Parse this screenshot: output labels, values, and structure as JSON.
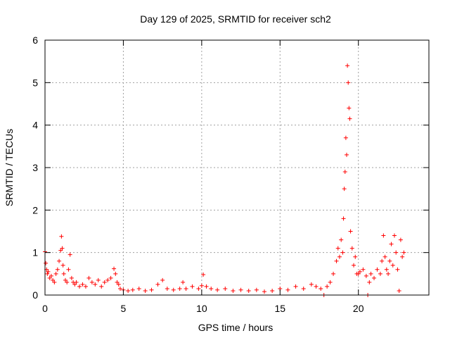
{
  "chart_data": {
    "type": "scatter",
    "title": "Day 129 of 2025, SRMTID for receiver sch2",
    "xlabel": "GPS time / hours",
    "ylabel": "SRMTID / TECUs",
    "xlim": [
      0,
      24.5
    ],
    "ylim": [
      0,
      6
    ],
    "xticks": [
      0,
      5,
      10,
      15,
      20
    ],
    "yticks": [
      0,
      1,
      2,
      3,
      4,
      5,
      6
    ],
    "xtick_labels": [
      "0",
      "5",
      "10",
      "15",
      "20"
    ],
    "ytick_labels": [
      "0",
      "1",
      "2",
      "3",
      "4",
      "5",
      "6"
    ],
    "grid": true,
    "marker": "+",
    "series": [
      {
        "name": "SRMTID",
        "color": "#ff0000",
        "x": [
          0.0,
          0.05,
          0.1,
          0.15,
          0.2,
          0.3,
          0.4,
          0.5,
          0.6,
          0.7,
          0.8,
          0.9,
          1.0,
          1.05,
          1.1,
          1.15,
          1.2,
          1.3,
          1.4,
          1.5,
          1.6,
          1.7,
          1.8,
          1.9,
          2.0,
          2.2,
          2.4,
          2.6,
          2.8,
          3.0,
          3.2,
          3.4,
          3.6,
          3.8,
          4.0,
          4.2,
          4.4,
          4.5,
          4.6,
          4.7,
          4.8,
          5.0,
          5.3,
          5.6,
          6.0,
          6.4,
          6.8,
          7.2,
          7.5,
          7.8,
          8.2,
          8.6,
          8.8,
          9.0,
          9.4,
          9.8,
          10.0,
          10.1,
          10.3,
          10.6,
          11.0,
          11.5,
          12.0,
          12.5,
          13.0,
          13.5,
          14.0,
          14.5,
          15.0,
          15.5,
          16.0,
          16.5,
          17.0,
          17.3,
          17.6,
          17.8,
          18.0,
          18.2,
          18.4,
          18.6,
          18.7,
          18.8,
          18.9,
          19.0,
          19.05,
          19.1,
          19.15,
          19.2,
          19.25,
          19.3,
          19.35,
          19.4,
          19.45,
          19.5,
          19.6,
          19.7,
          19.8,
          19.9,
          20.0,
          20.1,
          20.3,
          20.5,
          20.6,
          20.7,
          20.8,
          21.0,
          21.2,
          21.4,
          21.5,
          21.6,
          21.7,
          21.8,
          21.9,
          22.0,
          22.1,
          22.2,
          22.3,
          22.4,
          22.5,
          22.6,
          22.7,
          22.8,
          22.9
        ],
        "y": [
          1.02,
          0.75,
          0.6,
          0.5,
          0.55,
          0.4,
          0.45,
          0.35,
          0.3,
          0.5,
          0.6,
          0.8,
          1.05,
          1.38,
          1.1,
          0.7,
          0.5,
          0.35,
          0.3,
          0.6,
          0.95,
          0.4,
          0.3,
          0.25,
          0.3,
          0.2,
          0.25,
          0.2,
          0.4,
          0.3,
          0.25,
          0.35,
          0.2,
          0.3,
          0.35,
          0.4,
          0.62,
          0.5,
          0.3,
          0.25,
          0.15,
          0.12,
          0.1,
          0.12,
          0.15,
          0.1,
          0.12,
          0.25,
          0.35,
          0.15,
          0.12,
          0.15,
          0.3,
          0.15,
          0.2,
          0.15,
          0.22,
          0.48,
          0.2,
          0.15,
          0.12,
          0.15,
          0.1,
          0.12,
          0.1,
          0.12,
          0.08,
          0.1,
          0.15,
          0.12,
          0.2,
          0.15,
          0.25,
          0.2,
          0.15,
          0.0,
          0.2,
          0.3,
          0.5,
          0.8,
          1.1,
          0.9,
          1.3,
          1.0,
          1.8,
          2.5,
          2.9,
          3.7,
          3.3,
          5.4,
          5.0,
          4.4,
          4.15,
          1.5,
          1.1,
          0.7,
          0.9,
          0.5,
          0.5,
          0.55,
          0.6,
          0.45,
          0.0,
          0.3,
          0.5,
          0.4,
          0.6,
          0.5,
          0.8,
          1.4,
          0.9,
          0.6,
          0.5,
          0.8,
          1.2,
          0.7,
          1.4,
          1.0,
          0.6,
          0.1,
          1.3,
          0.9,
          1.0
        ]
      }
    ]
  }
}
